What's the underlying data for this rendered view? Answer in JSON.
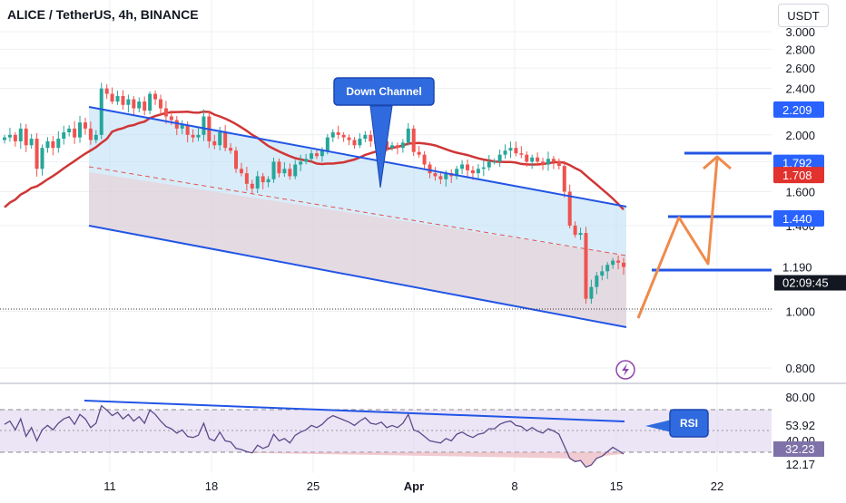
{
  "header": {
    "title": "ALICE / TetherUS, 4h, BINANCE",
    "currency_button": "USDT"
  },
  "chart_data": {
    "type": "candlestick",
    "symbol": "ALICE / TetherUS",
    "interval": "4h",
    "exchange": "BINANCE",
    "price_scale": "log",
    "y_ticks": [
      {
        "value": 3.0,
        "label": "3.000"
      },
      {
        "value": 2.8,
        "label": "2.800"
      },
      {
        "value": 2.6,
        "label": "2.600"
      },
      {
        "value": 2.4,
        "label": "2.400"
      },
      {
        "value": 2.0,
        "label": "2.000"
      },
      {
        "value": 1.8,
        "label": "1.800"
      },
      {
        "value": 1.6,
        "label": "1.600"
      },
      {
        "value": 1.4,
        "label": "1.400"
      },
      {
        "value": 1.0,
        "label": "1.000"
      },
      {
        "value": 0.8,
        "label": "0.800"
      }
    ],
    "price_badges": [
      {
        "value": 2.209,
        "label": "2.209",
        "kind": "target"
      },
      {
        "value": 1.792,
        "label": "1.792",
        "kind": "target"
      },
      {
        "value": 1.708,
        "label": "1.708",
        "kind": "moving-average"
      },
      {
        "value": 1.44,
        "label": "1.440",
        "kind": "target"
      },
      {
        "value": 1.19,
        "label": "1.190",
        "kind": "last-price",
        "countdown": "02:09:45"
      }
    ],
    "x_ticks": [
      {
        "label": "11",
        "bold": false
      },
      {
        "label": "18",
        "bold": false
      },
      {
        "label": "25",
        "bold": false
      },
      {
        "label": "Apr",
        "bold": true
      },
      {
        "label": "8",
        "bold": false
      },
      {
        "label": "15",
        "bold": false
      },
      {
        "label": "22",
        "bold": false
      }
    ],
    "annotations": {
      "channel_label": "Down Channel",
      "rsi_label": "RSI"
    },
    "target_levels": [
      1.44,
      1.792,
      2.209
    ],
    "closes": [
      1.98,
      2.0,
      1.95,
      2.05,
      1.92,
      1.97,
      1.75,
      1.9,
      1.95,
      1.9,
      1.97,
      2.02,
      2.05,
      1.98,
      2.1,
      2.05,
      1.96,
      2.0,
      2.4,
      2.35,
      2.28,
      2.33,
      2.25,
      2.3,
      2.22,
      2.28,
      2.2,
      2.35,
      2.3,
      2.22,
      2.15,
      2.12,
      2.05,
      2.08,
      2.0,
      1.98,
      2.0,
      2.15,
      1.95,
      1.92,
      2.02,
      1.9,
      1.88,
      1.75,
      1.72,
      1.65,
      1.62,
      1.7,
      1.66,
      1.68,
      1.8,
      1.72,
      1.75,
      1.7,
      1.78,
      1.8,
      1.82,
      1.86,
      1.84,
      1.88,
      1.98,
      2.02,
      2.0,
      1.98,
      1.96,
      1.92,
      1.97,
      2.0,
      1.95,
      1.93,
      1.95,
      1.9,
      1.92,
      1.9,
      1.94,
      2.05,
      1.87,
      1.85,
      1.78,
      1.72,
      1.7,
      1.68,
      1.72,
      1.7,
      1.75,
      1.78,
      1.74,
      1.72,
      1.75,
      1.76,
      1.8,
      1.8,
      1.85,
      1.88,
      1.9,
      1.86,
      1.85,
      1.8,
      1.83,
      1.8,
      1.78,
      1.82,
      1.8,
      1.77,
      1.6,
      1.4,
      1.35,
      1.36,
      1.05,
      1.1,
      1.15,
      1.17,
      1.2,
      1.22,
      1.21,
      1.19
    ],
    "rsi": {
      "levels": [
        80.0,
        53.92,
        40.0,
        32.23,
        12.17
      ],
      "level_labels": [
        "80.00",
        "53.92",
        "40.00",
        "32.23",
        "12.17"
      ],
      "values": [
        55,
        58,
        50,
        60,
        44,
        52,
        40,
        50,
        54,
        50,
        56,
        60,
        62,
        55,
        64,
        60,
        52,
        56,
        72,
        68,
        63,
        66,
        60,
        64,
        58,
        62,
        56,
        68,
        64,
        58,
        53,
        51,
        47,
        50,
        44,
        43,
        45,
        56,
        42,
        40,
        48,
        40,
        39,
        33,
        32,
        30,
        29,
        36,
        33,
        35,
        46,
        40,
        42,
        38,
        45,
        48,
        50,
        54,
        52,
        55,
        60,
        63,
        61,
        59,
        57,
        54,
        58,
        61,
        56,
        55,
        57,
        52,
        54,
        52,
        56,
        64,
        50,
        48,
        44,
        40,
        39,
        38,
        42,
        40,
        46,
        48,
        45,
        43,
        46,
        47,
        51,
        51,
        55,
        57,
        58,
        54,
        53,
        49,
        52,
        49,
        47,
        51,
        49,
        46,
        35,
        24,
        21,
        22,
        16,
        18,
        24,
        26,
        30,
        34,
        31,
        28
      ]
    }
  }
}
